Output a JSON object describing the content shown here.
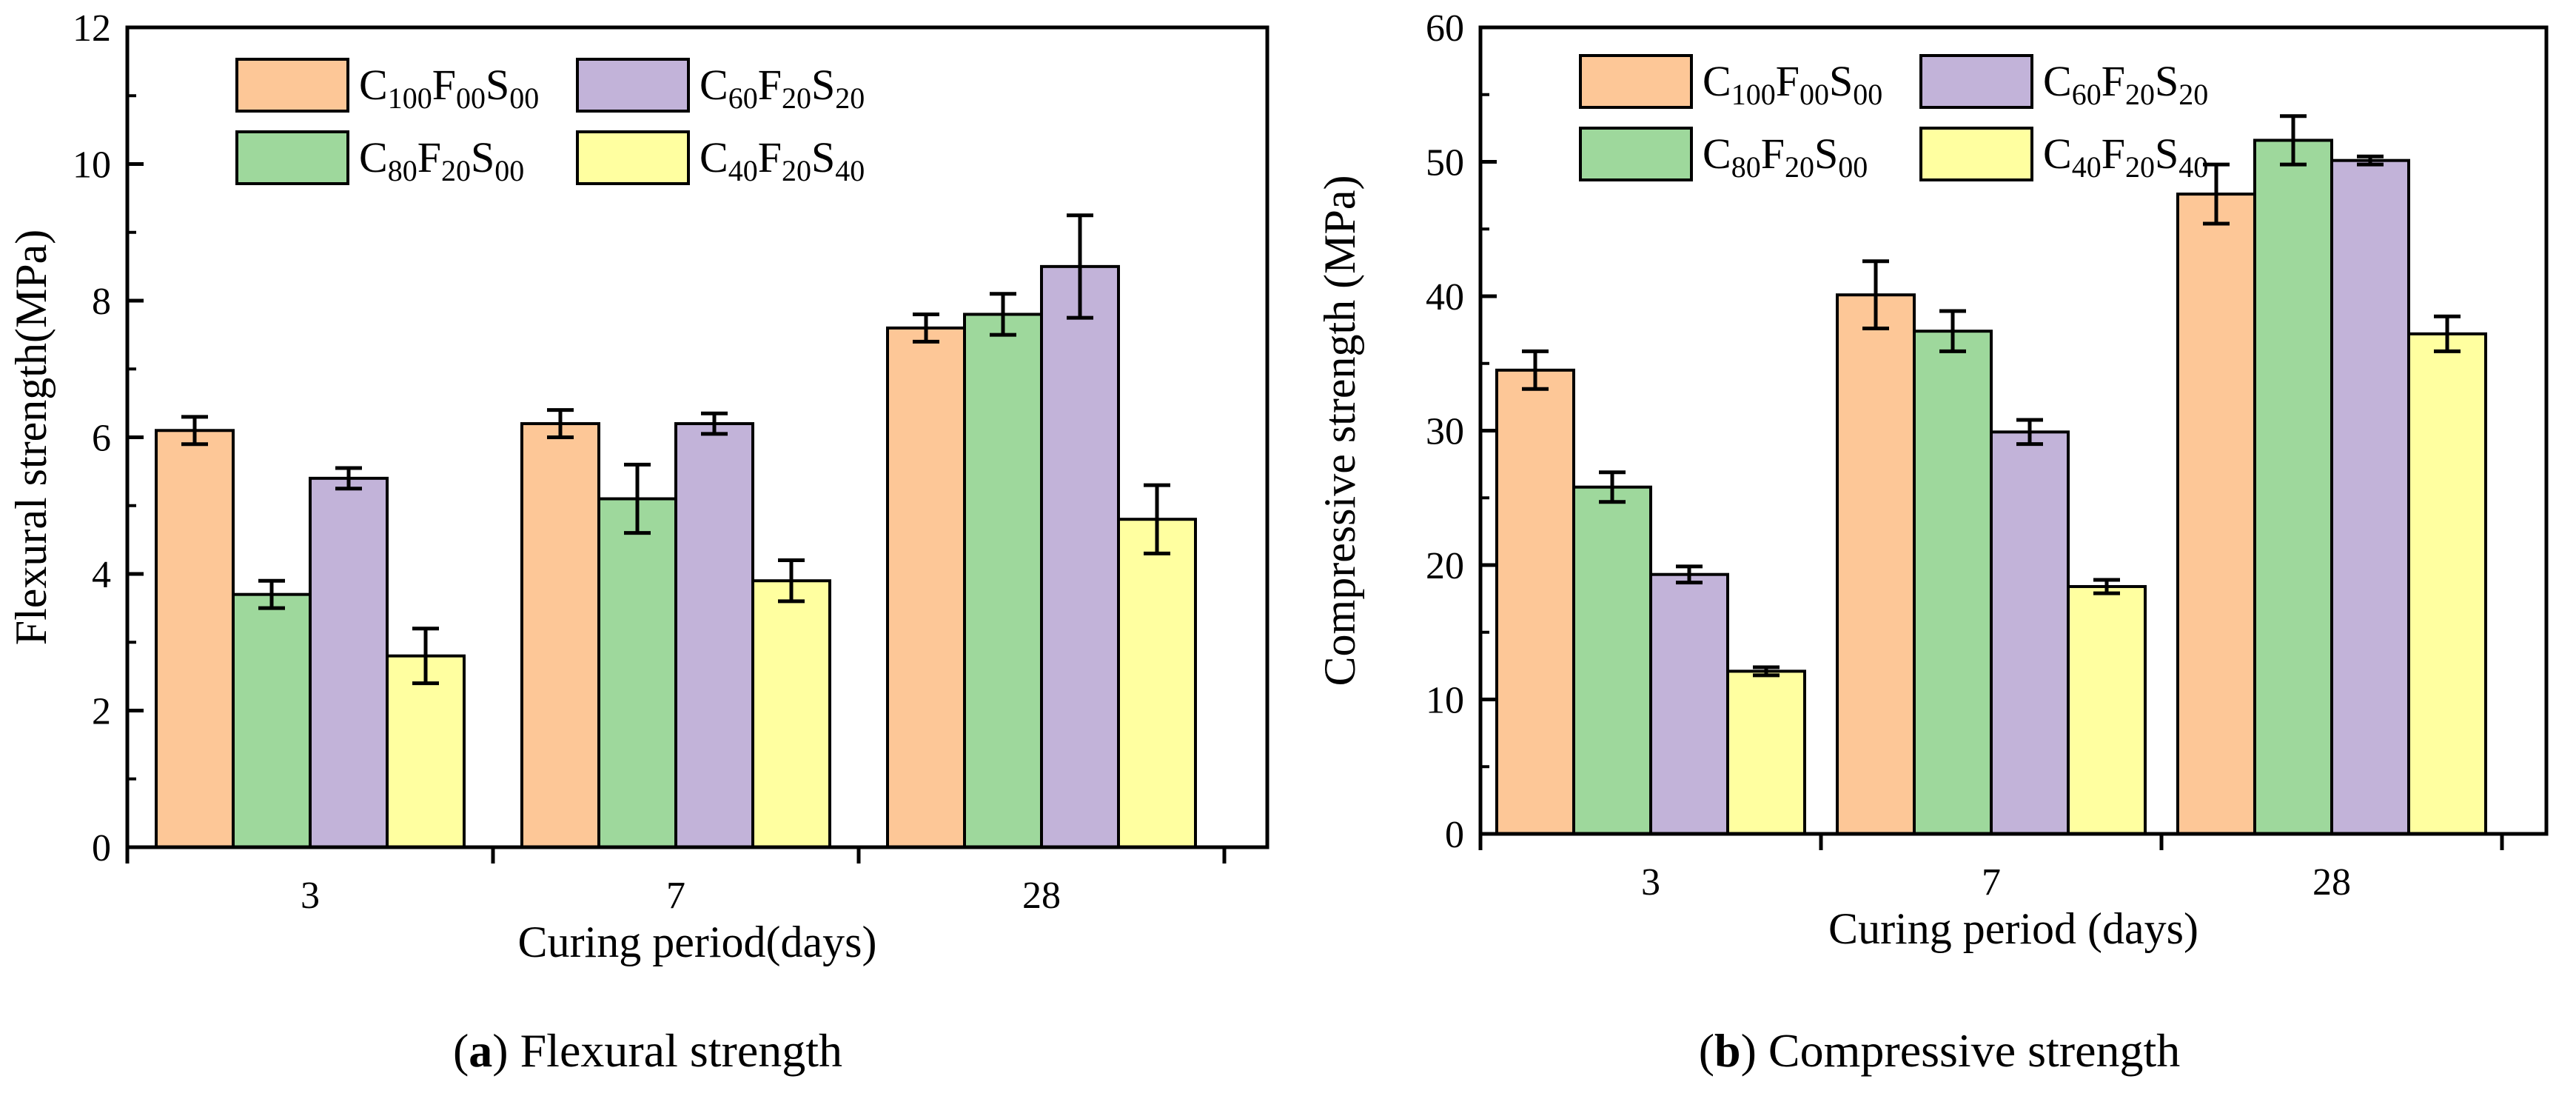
{
  "colors": {
    "C100F00S00": "#FDC797",
    "C80F20S00": "#9ED89C",
    "C60F20S20": "#C2B3D9",
    "C40F20S40": "#FFFFA0"
  },
  "legend": {
    "items": [
      {
        "key": "C100F00S00",
        "parts": [
          [
            "C",
            ""
          ],
          [
            "100",
            "sub"
          ],
          [
            "F",
            ""
          ],
          [
            "00",
            "sub"
          ],
          [
            "S",
            ""
          ],
          [
            "00",
            "sub"
          ]
        ]
      },
      {
        "key": "C60F20S20",
        "parts": [
          [
            "C",
            ""
          ],
          [
            "60",
            "sub"
          ],
          [
            "F",
            ""
          ],
          [
            "20",
            "sub"
          ],
          [
            "S",
            ""
          ],
          [
            "20",
            "sub"
          ]
        ]
      },
      {
        "key": "C80F20S00",
        "parts": [
          [
            "C",
            ""
          ],
          [
            "80",
            "sub"
          ],
          [
            "F",
            ""
          ],
          [
            "20",
            "sub"
          ],
          [
            "S",
            ""
          ],
          [
            "00",
            "sub"
          ]
        ]
      },
      {
        "key": "C40F20S40",
        "parts": [
          [
            "C",
            ""
          ],
          [
            "40",
            "sub"
          ],
          [
            "F",
            ""
          ],
          [
            "20",
            "sub"
          ],
          [
            "S",
            ""
          ],
          [
            "40",
            "sub"
          ]
        ]
      }
    ]
  },
  "captions": {
    "a": {
      "letter": "a",
      "text": " Flexural strength"
    },
    "b": {
      "letter": "b",
      "text": " Compressive strength"
    }
  },
  "chart_data": [
    {
      "type": "bar",
      "panel": "a",
      "categories": [
        "3",
        "7",
        "28"
      ],
      "xlabel": "Curing period(days)",
      "ylabel": "Flexural strength(MPa)",
      "ylim": [
        0,
        12
      ],
      "yticks": [
        0,
        2,
        4,
        6,
        8,
        10,
        12
      ],
      "legend_position": "top-left",
      "series": [
        {
          "key": "C100F00S00",
          "values": [
            6.1,
            6.2,
            7.6
          ],
          "errors": [
            0.2,
            0.2,
            0.2
          ]
        },
        {
          "key": "C80F20S00",
          "values": [
            3.7,
            5.1,
            7.8
          ],
          "errors": [
            0.2,
            0.5,
            0.3
          ]
        },
        {
          "key": "C60F20S20",
          "values": [
            5.4,
            6.2,
            8.5
          ],
          "errors": [
            0.15,
            0.15,
            0.75
          ]
        },
        {
          "key": "C40F20S40",
          "values": [
            2.8,
            3.9,
            4.8
          ],
          "errors": [
            0.4,
            0.3,
            0.5
          ]
        }
      ]
    },
    {
      "type": "bar",
      "panel": "b",
      "categories": [
        "3",
        "7",
        "28"
      ],
      "xlabel": "Curing period (days)",
      "ylabel": "Compressive strength (MPa)",
      "ylim": [
        0,
        60
      ],
      "yticks": [
        0,
        10,
        20,
        30,
        40,
        50,
        60
      ],
      "legend_position": "top-left",
      "series": [
        {
          "key": "C100F00S00",
          "values": [
            34.5,
            40.1,
            47.6
          ],
          "errors": [
            1.4,
            2.5,
            2.2
          ]
        },
        {
          "key": "C80F20S00",
          "values": [
            25.8,
            37.4,
            51.6
          ],
          "errors": [
            1.1,
            1.5,
            1.8
          ]
        },
        {
          "key": "C60F20S20",
          "values": [
            19.3,
            29.9,
            50.1
          ],
          "errors": [
            0.6,
            0.9,
            0.3
          ]
        },
        {
          "key": "C40F20S40",
          "values": [
            12.1,
            18.4,
            37.2
          ],
          "errors": [
            0.3,
            0.5,
            1.3
          ]
        }
      ]
    }
  ]
}
